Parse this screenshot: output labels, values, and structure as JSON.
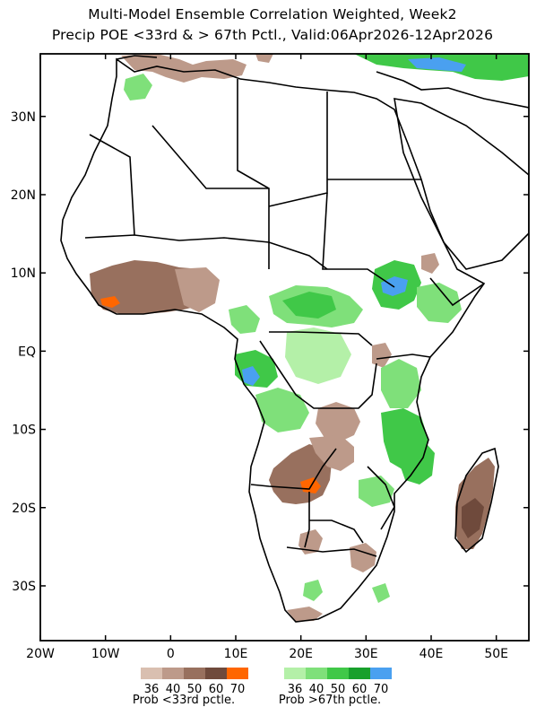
{
  "title_line1": "Multi-Model Ensemble Correlation Weighted, Week2",
  "title_line2": "Precip POE <33rd & > 67th Pctl., Valid:06Apr2026-12Apr2026",
  "x_axis": {
    "tick_labels": [
      "20W",
      "10W",
      "0",
      "10E",
      "20E",
      "30E",
      "40E",
      "50E"
    ],
    "tick_values": [
      -20,
      -10,
      0,
      10,
      20,
      30,
      40,
      50
    ],
    "range": [
      -20,
      55
    ]
  },
  "y_axis": {
    "tick_labels": [
      "30N",
      "20N",
      "10N",
      "EQ",
      "10S",
      "20S",
      "30S"
    ],
    "tick_values": [
      30,
      20,
      10,
      0,
      -10,
      -20,
      -30
    ],
    "range": [
      -37,
      38
    ]
  },
  "legend_below": {
    "numbers": [
      "36",
      "40",
      "50",
      "60",
      "70"
    ],
    "label": "Prob <33rd pctle.",
    "colors": [
      "#d9bfb0",
      "#bd9a8a",
      "#98705e",
      "#6f4a3c",
      "#ff6600"
    ]
  },
  "legend_above": {
    "numbers": [
      "36",
      "40",
      "50",
      "60",
      "70"
    ],
    "label": "Prob >67th pctle.",
    "colors": [
      "#b4f0a8",
      "#7fe07a",
      "#40c848",
      "#18a02c",
      "#4aa0f0"
    ]
  },
  "colors": {
    "below_light": "#bd9a8a",
    "below_dark": "#7e5848",
    "below_extreme": "#ff6600",
    "above_light": "#7fe07a",
    "above_mid": "#40c848",
    "above_extreme": "#4aa0f0",
    "land_outline": "#000000",
    "background": "#ffffff"
  }
}
